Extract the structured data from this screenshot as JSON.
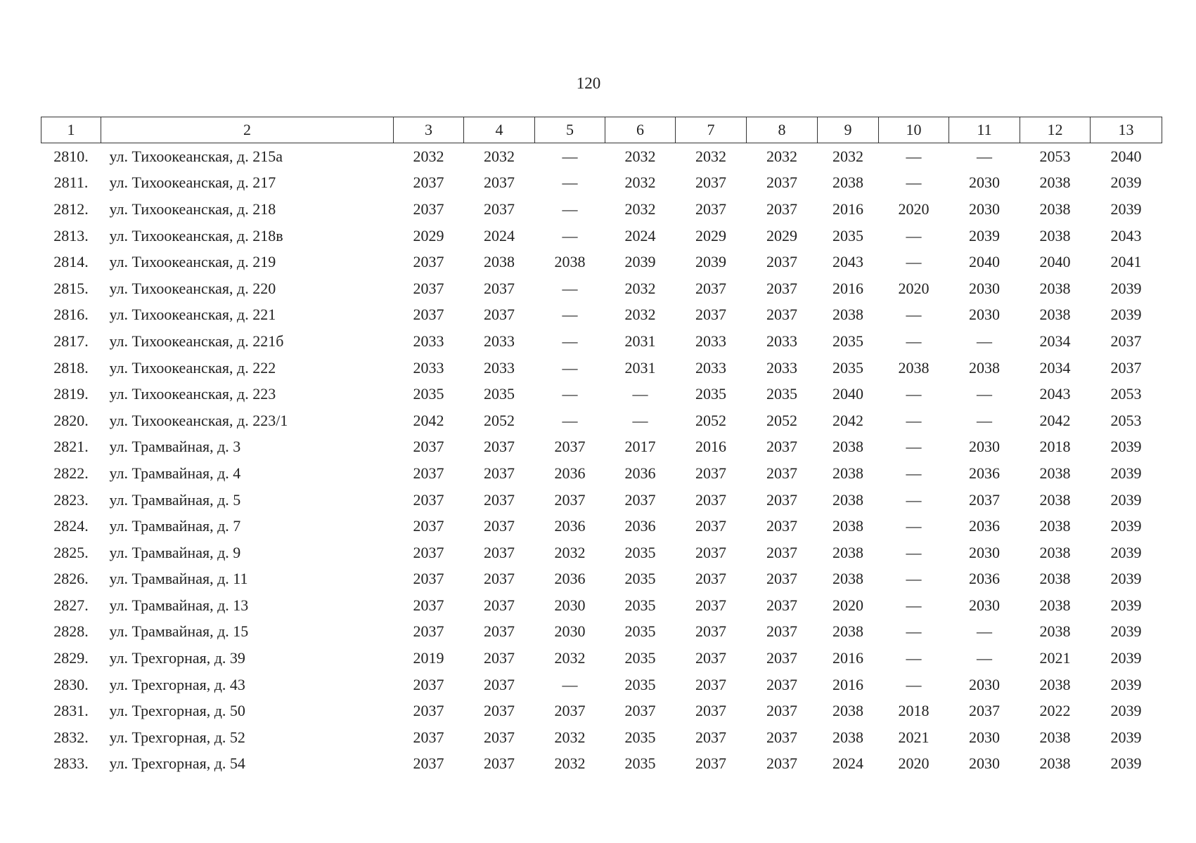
{
  "page_number": "120",
  "table": {
    "header": [
      "1",
      "2",
      "3",
      "4",
      "5",
      "6",
      "7",
      "8",
      "9",
      "10",
      "11",
      "12",
      "13"
    ],
    "rows": [
      [
        "2810.",
        "ул. Тихоокеанская, д. 215а",
        "2032",
        "2032",
        "—",
        "2032",
        "2032",
        "2032",
        "2032",
        "—",
        "—",
        "2053",
        "2040"
      ],
      [
        "2811.",
        "ул. Тихоокеанская, д. 217",
        "2037",
        "2037",
        "—",
        "2032",
        "2037",
        "2037",
        "2038",
        "—",
        "2030",
        "2038",
        "2039"
      ],
      [
        "2812.",
        "ул. Тихоокеанская, д. 218",
        "2037",
        "2037",
        "—",
        "2032",
        "2037",
        "2037",
        "2016",
        "2020",
        "2030",
        "2038",
        "2039"
      ],
      [
        "2813.",
        "ул. Тихоокеанская, д. 218в",
        "2029",
        "2024",
        "—",
        "2024",
        "2029",
        "2029",
        "2035",
        "—",
        "2039",
        "2038",
        "2043"
      ],
      [
        "2814.",
        "ул. Тихоокеанская, д. 219",
        "2037",
        "2038",
        "2038",
        "2039",
        "2039",
        "2037",
        "2043",
        "—",
        "2040",
        "2040",
        "2041"
      ],
      [
        "2815.",
        "ул. Тихоокеанская, д. 220",
        "2037",
        "2037",
        "—",
        "2032",
        "2037",
        "2037",
        "2016",
        "2020",
        "2030",
        "2038",
        "2039"
      ],
      [
        "2816.",
        "ул. Тихоокеанская, д. 221",
        "2037",
        "2037",
        "—",
        "2032",
        "2037",
        "2037",
        "2038",
        "—",
        "2030",
        "2038",
        "2039"
      ],
      [
        "2817.",
        "ул. Тихоокеанская, д. 221б",
        "2033",
        "2033",
        "—",
        "2031",
        "2033",
        "2033",
        "2035",
        "—",
        "—",
        "2034",
        "2037"
      ],
      [
        "2818.",
        "ул. Тихоокеанская, д. 222",
        "2033",
        "2033",
        "—",
        "2031",
        "2033",
        "2033",
        "2035",
        "2038",
        "2038",
        "2034",
        "2037"
      ],
      [
        "2819.",
        "ул. Тихоокеанская, д. 223",
        "2035",
        "2035",
        "—",
        "—",
        "2035",
        "2035",
        "2040",
        "—",
        "—",
        "2043",
        "2053"
      ],
      [
        "2820.",
        "ул. Тихоокеанская, д. 223/1",
        "2042",
        "2052",
        "—",
        "—",
        "2052",
        "2052",
        "2042",
        "—",
        "—",
        "2042",
        "2053"
      ],
      [
        "2821.",
        "ул. Трамвайная, д. 3",
        "2037",
        "2037",
        "2037",
        "2017",
        "2016",
        "2037",
        "2038",
        "—",
        "2030",
        "2018",
        "2039"
      ],
      [
        "2822.",
        "ул. Трамвайная, д. 4",
        "2037",
        "2037",
        "2036",
        "2036",
        "2037",
        "2037",
        "2038",
        "—",
        "2036",
        "2038",
        "2039"
      ],
      [
        "2823.",
        "ул. Трамвайная, д. 5",
        "2037",
        "2037",
        "2037",
        "2037",
        "2037",
        "2037",
        "2038",
        "—",
        "2037",
        "2038",
        "2039"
      ],
      [
        "2824.",
        "ул. Трамвайная, д. 7",
        "2037",
        "2037",
        "2036",
        "2036",
        "2037",
        "2037",
        "2038",
        "—",
        "2036",
        "2038",
        "2039"
      ],
      [
        "2825.",
        "ул. Трамвайная, д. 9",
        "2037",
        "2037",
        "2032",
        "2035",
        "2037",
        "2037",
        "2038",
        "—",
        "2030",
        "2038",
        "2039"
      ],
      [
        "2826.",
        "ул. Трамвайная, д. 11",
        "2037",
        "2037",
        "2036",
        "2035",
        "2037",
        "2037",
        "2038",
        "—",
        "2036",
        "2038",
        "2039"
      ],
      [
        "2827.",
        "ул. Трамвайная, д. 13",
        "2037",
        "2037",
        "2030",
        "2035",
        "2037",
        "2037",
        "2020",
        "—",
        "2030",
        "2038",
        "2039"
      ],
      [
        "2828.",
        "ул. Трамвайная, д. 15",
        "2037",
        "2037",
        "2030",
        "2035",
        "2037",
        "2037",
        "2038",
        "—",
        "—",
        "2038",
        "2039"
      ],
      [
        "2829.",
        "ул. Трехгорная, д. 39",
        "2019",
        "2037",
        "2032",
        "2035",
        "2037",
        "2037",
        "2016",
        "—",
        "—",
        "2021",
        "2039"
      ],
      [
        "2830.",
        "ул. Трехгорная, д. 43",
        "2037",
        "2037",
        "—",
        "2035",
        "2037",
        "2037",
        "2016",
        "—",
        "2030",
        "2038",
        "2039"
      ],
      [
        "2831.",
        "ул. Трехгорная, д. 50",
        "2037",
        "2037",
        "2037",
        "2037",
        "2037",
        "2037",
        "2038",
        "2018",
        "2037",
        "2022",
        "2039"
      ],
      [
        "2832.",
        "ул. Трехгорная, д. 52",
        "2037",
        "2037",
        "2032",
        "2035",
        "2037",
        "2037",
        "2038",
        "2021",
        "2030",
        "2038",
        "2039"
      ],
      [
        "2833.",
        "ул. Трехгорная, д. 54",
        "2037",
        "2037",
        "2032",
        "2035",
        "2037",
        "2037",
        "2024",
        "2020",
        "2030",
        "2038",
        "2039"
      ]
    ]
  }
}
